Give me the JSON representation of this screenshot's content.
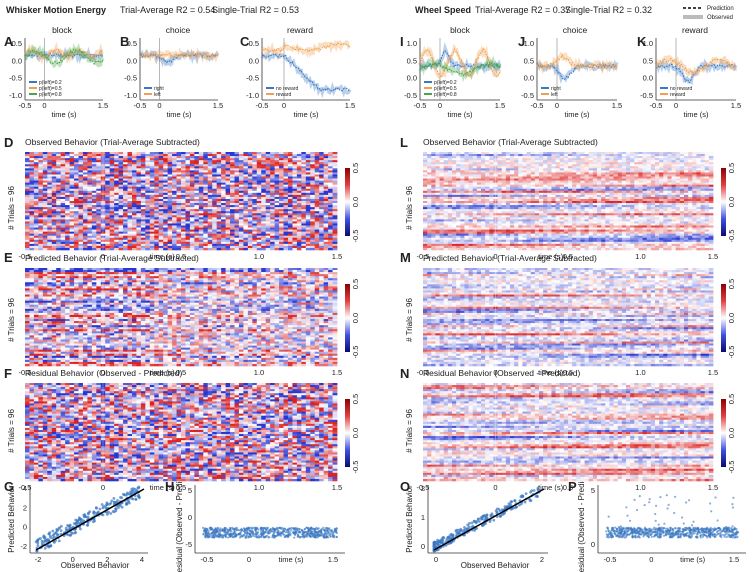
{
  "left": {
    "modality": "Whisker Motion Energy",
    "trial_r2": "Trial-Average R2 = 0.54",
    "single_r2": "Single-Trial R2 = 0.53"
  },
  "right": {
    "modality": "Wheel Speed",
    "trial_r2": "Trial-Average R2 = 0.37",
    "single_r2": "Single-Trial R2 = 0.32"
  },
  "legend_top": {
    "prediction": "Prediction",
    "observed": "Observed"
  },
  "panel_labels": {
    "A": "A",
    "B": "B",
    "C": "C",
    "D": "D",
    "E": "E",
    "F": "F",
    "G": "G",
    "H": "H",
    "I": "I",
    "J": "J",
    "K": "K",
    "L": "L",
    "M": "M",
    "N": "N",
    "O": "O",
    "P": "P"
  },
  "subplot_titles": {
    "block": "block",
    "choice": "choice",
    "reward": "reward"
  },
  "legends": {
    "block": [
      "p(left)=0.2",
      "p(left)=0.5",
      "p(left)=0.8"
    ],
    "choice": [
      "right",
      "left"
    ],
    "reward": [
      "no reward",
      "reward"
    ]
  },
  "heatmap_titles": {
    "observed": "Observed Behavior (Trial-Average Subtracted)",
    "predicted": "Predicted Behavior (Trial-Average Subtracted)",
    "residual": "Residual Behavior (Observed - Predicted)"
  },
  "labels": {
    "time": "time (s)",
    "trials": "# Trials = 96",
    "observed_behavior": "Observed Behavior",
    "predicted_behavior": "Predicted Behavior",
    "residual_behavior": "Residual (Observed - Predicted)"
  },
  "ticks": {
    "psth_x": [
      "-0.5",
      "0",
      "0.5",
      "1.0",
      "1.5"
    ],
    "psth_x_short": [
      "-0.5",
      "0",
      "1.5"
    ],
    "left_psth_y": [
      "0.5",
      "0.0",
      "-0.5",
      "-1.0"
    ],
    "right_psth_y": [
      "1.0",
      "0.5",
      "0.0",
      "-0.5"
    ],
    "heat_x": [
      "-0.5",
      "0",
      "0.5",
      "1.0",
      "1.5"
    ],
    "colorbar": [
      "0.5",
      "0.0",
      "-0.5"
    ],
    "g_x": [
      "-2",
      "0",
      "2",
      "4"
    ],
    "g_y": [
      "4",
      "2",
      "0",
      "-2"
    ],
    "o_x": [
      "0",
      "2"
    ],
    "o_y": [
      "2",
      "1",
      "0"
    ],
    "h_y": [
      "5",
      "0",
      "-5"
    ],
    "p_y": [
      "5",
      "0"
    ],
    "resid_x": [
      "-0.5",
      "0",
      "time (s)",
      "1.5"
    ]
  },
  "colors": {
    "blue": "#3a78c2",
    "orange": "#f0a050",
    "green": "#4aa64a",
    "heat_red": "#d62020",
    "heat_blue": "#2a3bd0"
  }
}
